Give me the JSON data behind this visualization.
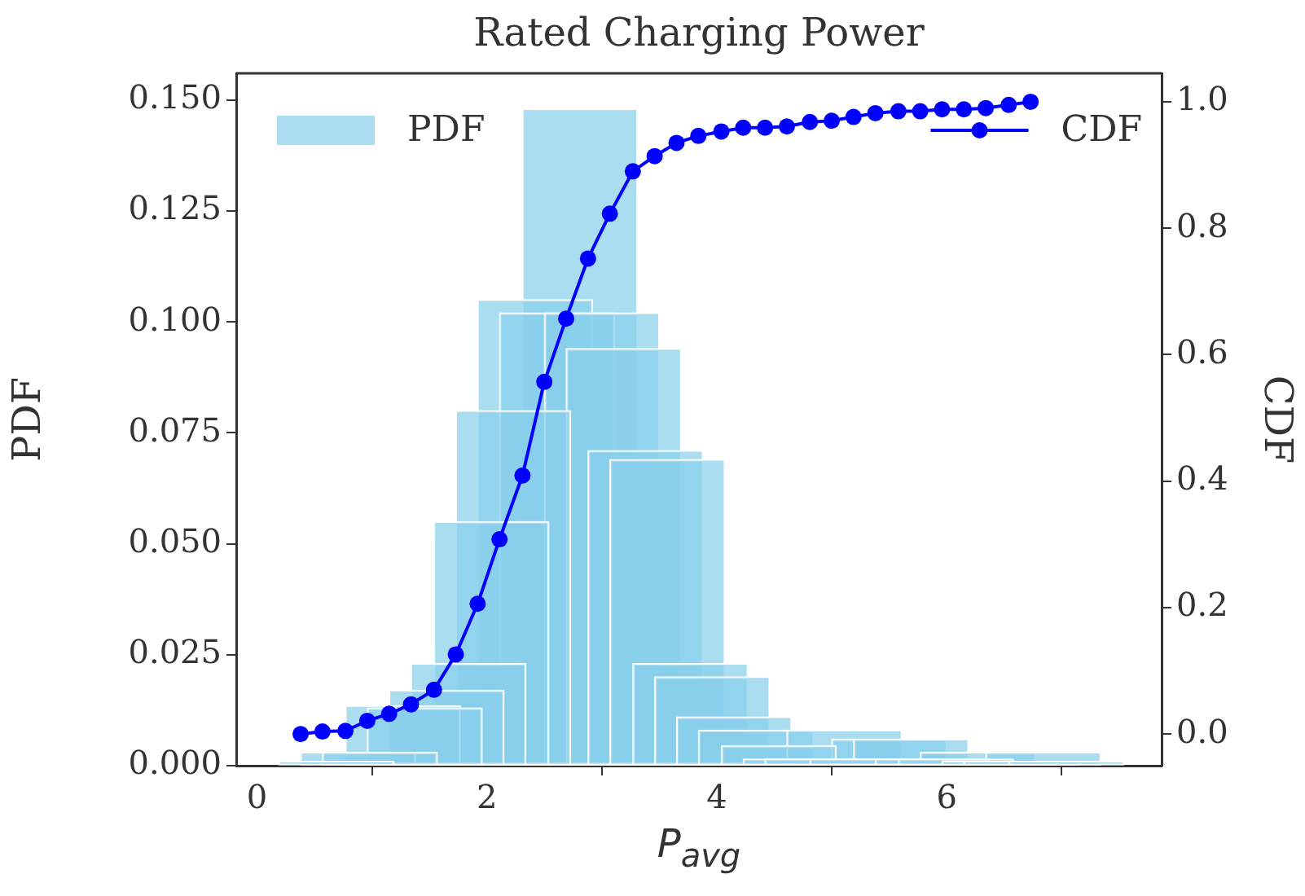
{
  "chart_data": {
    "type": "bar",
    "title": "Rated Charging Power",
    "xlabel": "P$_{avg}$",
    "ylabel": "PDF",
    "y2label": "CDF",
    "xlim": [
      -0.18,
      7.87
    ],
    "xticks": [
      0,
      2,
      4,
      6
    ],
    "ylim": [
      0,
      0.156
    ],
    "yticks": [
      {
        "value": 0,
        "label": "0.000"
      },
      {
        "value": 0.025,
        "label": "0.025"
      },
      {
        "value": 0.05,
        "label": "0.050"
      },
      {
        "value": 0.075,
        "label": "0.075"
      },
      {
        "value": 0.1,
        "label": "0.100"
      },
      {
        "value": 0.125,
        "label": "0.125"
      },
      {
        "value": 0.15,
        "label": "0.150"
      }
    ],
    "y2lim": [
      -0.05,
      1.045
    ],
    "y2ticks": [
      {
        "value": 0,
        "label": "0.0"
      },
      {
        "value": 0.2,
        "label": "0.2"
      },
      {
        "value": 0.4,
        "label": "0.4"
      },
      {
        "value": 0.6,
        "label": "0.6"
      },
      {
        "value": 0.8,
        "label": "0.8"
      },
      {
        "value": 1,
        "label": "1.0"
      }
    ],
    "grid": false,
    "legend": "top",
    "series": [
      {
        "name": "PDF",
        "color": "#87ceeb",
        "x": [
          0.69,
          0.88,
          1.07,
          1.27,
          1.46,
          1.65,
          1.84,
          2.04,
          2.23,
          2.42,
          2.61,
          2.81,
          3.0,
          3.19,
          3.38,
          3.57,
          3.77,
          3.96,
          4.15,
          4.34,
          4.54,
          4.73,
          4.92,
          5.11,
          5.31,
          5.5,
          5.69,
          5.88,
          6.08,
          6.27,
          6.46,
          6.65,
          6.84,
          7.04
        ],
        "values": [
          0.001,
          0.003,
          0.003,
          0.0135,
          0.013,
          0.017,
          0.023,
          0.055,
          0.08,
          0.105,
          0.102,
          0.148,
          0.102,
          0.094,
          0.071,
          0.069,
          0.023,
          0.02,
          0.011,
          0.008,
          0.0045,
          0.0015,
          0.0015,
          0.008,
          0.0015,
          0.006,
          0.006,
          0.0015,
          0.0015,
          0.003,
          0.001,
          0.001,
          0.003,
          0.001
        ]
      },
      {
        "name": "CDF",
        "type": "line",
        "axis": "y2",
        "color": "#0000ff",
        "marker": "circle",
        "line_style": "solid",
        "x": [
          0.38,
          0.57,
          0.77,
          0.96,
          1.15,
          1.34,
          1.54,
          1.73,
          1.92,
          2.11,
          2.31,
          2.5,
          2.69,
          2.88,
          3.07,
          3.27,
          3.46,
          3.65,
          3.84,
          4.04,
          4.23,
          4.42,
          4.61,
          4.81,
          5.0,
          5.19,
          5.38,
          5.58,
          5.77,
          5.96,
          6.15,
          6.34,
          6.54,
          6.73
        ],
        "values": [
          0.0,
          0.004,
          0.005,
          0.021,
          0.032,
          0.047,
          0.07,
          0.126,
          0.206,
          0.308,
          0.409,
          0.557,
          0.657,
          0.752,
          0.823,
          0.89,
          0.914,
          0.935,
          0.946,
          0.953,
          0.959,
          0.959,
          0.961,
          0.968,
          0.97,
          0.976,
          0.982,
          0.985,
          0.985,
          0.988,
          0.988,
          0.99,
          0.995,
          1.0
        ]
      }
    ]
  }
}
